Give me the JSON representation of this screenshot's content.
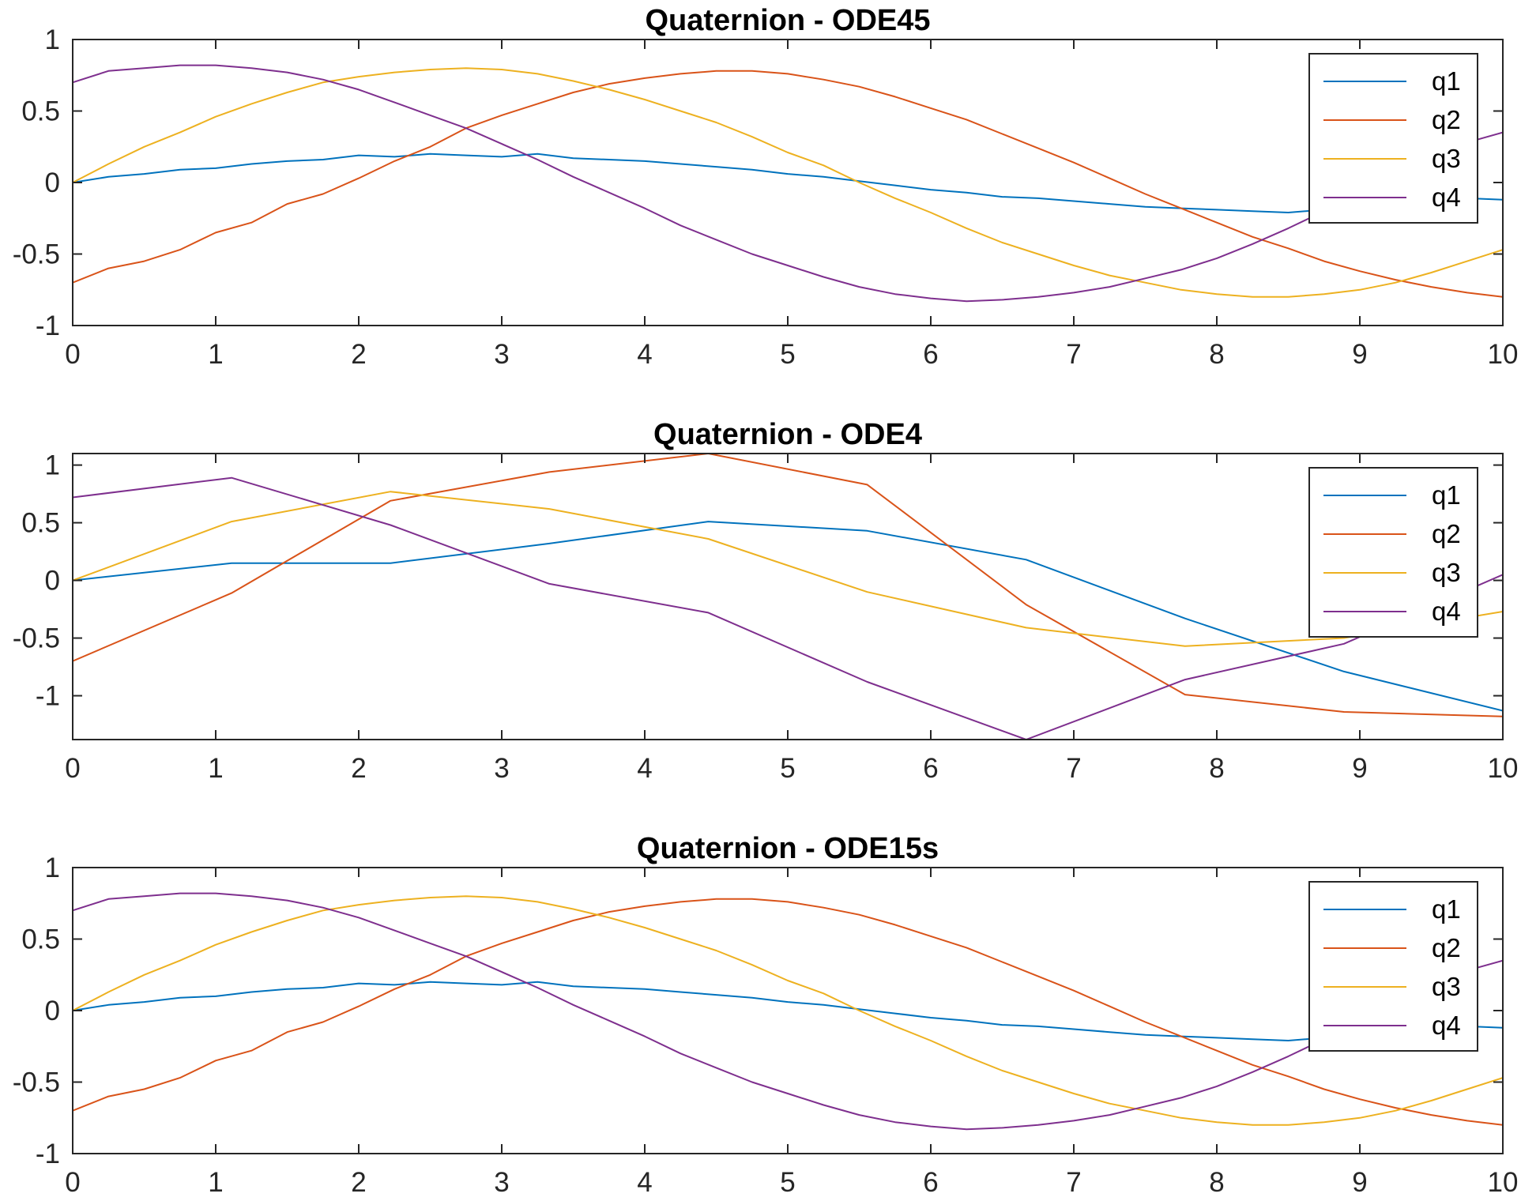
{
  "chart_data": [
    {
      "type": "line",
      "title": "Quaternion - ODE45",
      "xlabel": "",
      "ylabel": "",
      "xlim": [
        0,
        10
      ],
      "ylim": [
        -1,
        1
      ],
      "xticks": [
        "0",
        "1",
        "2",
        "3",
        "4",
        "5",
        "6",
        "7",
        "8",
        "9",
        "10"
      ],
      "yticks": [
        "-1",
        "-0.5",
        "0",
        "0.5",
        "1"
      ],
      "grid": false,
      "legend": "top-right",
      "x": [
        0,
        0.25,
        0.5,
        0.75,
        1,
        1.25,
        1.5,
        1.75,
        2,
        2.25,
        2.5,
        2.75,
        3,
        3.25,
        3.5,
        3.75,
        4,
        4.25,
        4.5,
        4.75,
        5,
        5.25,
        5.5,
        5.75,
        6,
        6.25,
        6.5,
        6.75,
        7,
        7.25,
        7.5,
        7.75,
        8,
        8.25,
        8.5,
        8.75,
        9,
        9.25,
        9.5,
        9.75,
        10
      ],
      "series": [
        {
          "name": "q1",
          "color": "#0072BD",
          "values": [
            0.0,
            0.04,
            0.06,
            0.09,
            0.1,
            0.13,
            0.15,
            0.16,
            0.19,
            0.18,
            0.2,
            0.19,
            0.18,
            0.2,
            0.17,
            0.16,
            0.15,
            0.13,
            0.11,
            0.09,
            0.06,
            0.04,
            0.01,
            -0.02,
            -0.05,
            -0.07,
            -0.1,
            -0.11,
            -0.13,
            -0.15,
            -0.17,
            -0.18,
            -0.19,
            -0.2,
            -0.21,
            -0.19,
            -0.16,
            -0.13,
            -0.1,
            -0.11,
            -0.12
          ]
        },
        {
          "name": "q2",
          "color": "#D95319",
          "values": [
            -0.7,
            -0.6,
            -0.55,
            -0.47,
            -0.35,
            -0.28,
            -0.15,
            -0.08,
            0.03,
            0.15,
            0.25,
            0.38,
            0.47,
            0.55,
            0.63,
            0.69,
            0.73,
            0.76,
            0.78,
            0.78,
            0.76,
            0.72,
            0.67,
            0.6,
            0.52,
            0.44,
            0.34,
            0.24,
            0.14,
            0.03,
            -0.08,
            -0.18,
            -0.28,
            -0.38,
            -0.46,
            -0.55,
            -0.62,
            -0.68,
            -0.73,
            -0.77,
            -0.8
          ]
        },
        {
          "name": "q3",
          "color": "#EDB120",
          "values": [
            0.0,
            0.13,
            0.25,
            0.35,
            0.46,
            0.55,
            0.63,
            0.7,
            0.74,
            0.77,
            0.79,
            0.8,
            0.79,
            0.76,
            0.71,
            0.65,
            0.58,
            0.5,
            0.42,
            0.32,
            0.21,
            0.12,
            0.0,
            -0.11,
            -0.21,
            -0.32,
            -0.42,
            -0.5,
            -0.58,
            -0.65,
            -0.7,
            -0.75,
            -0.78,
            -0.8,
            -0.8,
            -0.78,
            -0.75,
            -0.7,
            -0.63,
            -0.55,
            -0.47
          ]
        },
        {
          "name": "q4",
          "color": "#7E2F8E",
          "values": [
            0.7,
            0.78,
            0.8,
            0.82,
            0.82,
            0.8,
            0.77,
            0.72,
            0.65,
            0.56,
            0.47,
            0.38,
            0.27,
            0.16,
            0.04,
            -0.07,
            -0.18,
            -0.3,
            -0.4,
            -0.5,
            -0.58,
            -0.66,
            -0.73,
            -0.78,
            -0.81,
            -0.83,
            -0.82,
            -0.8,
            -0.77,
            -0.73,
            -0.67,
            -0.61,
            -0.53,
            -0.43,
            -0.32,
            -0.2,
            -0.08,
            0.05,
            0.17,
            0.28,
            0.35
          ]
        }
      ]
    },
    {
      "type": "line",
      "title": "Quaternion - ODE4",
      "xlabel": "",
      "ylabel": "",
      "xlim": [
        0,
        10
      ],
      "ylim": [
        -1.38,
        1.1
      ],
      "xticks": [
        "0",
        "1",
        "2",
        "3",
        "4",
        "5",
        "6",
        "7",
        "8",
        "9",
        "10"
      ],
      "yticks": [
        "-1",
        "-0.5",
        "0",
        "0.5",
        "1"
      ],
      "grid": false,
      "legend": "top-right",
      "x": [
        0,
        1.111,
        2.222,
        3.333,
        4.444,
        5.556,
        6.667,
        7.778,
        8.889,
        10
      ],
      "series": [
        {
          "name": "q1",
          "color": "#0072BD",
          "values": [
            0.0,
            0.15,
            0.15,
            0.32,
            0.51,
            0.43,
            0.18,
            -0.33,
            -0.79,
            -1.13
          ]
        },
        {
          "name": "q2",
          "color": "#D95319",
          "values": [
            -0.7,
            -0.11,
            0.69,
            0.94,
            1.1,
            0.83,
            -0.21,
            -0.99,
            -1.14,
            -1.18
          ]
        },
        {
          "name": "q3",
          "color": "#EDB120",
          "values": [
            0.0,
            0.51,
            0.77,
            0.62,
            0.36,
            -0.1,
            -0.41,
            -0.57,
            -0.5,
            -0.27
          ]
        },
        {
          "name": "q4",
          "color": "#7E2F8E",
          "values": [
            0.72,
            0.89,
            0.48,
            -0.03,
            -0.28,
            -0.88,
            -1.38,
            -0.86,
            -0.55,
            0.05
          ]
        }
      ]
    },
    {
      "type": "line",
      "title": "Quaternion - ODE15s",
      "xlabel": "",
      "ylabel": "",
      "xlim": [
        0,
        10
      ],
      "ylim": [
        -1,
        1
      ],
      "xticks": [
        "0",
        "1",
        "2",
        "3",
        "4",
        "5",
        "6",
        "7",
        "8",
        "9",
        "10"
      ],
      "yticks": [
        "-1",
        "-0.5",
        "0",
        "0.5",
        "1"
      ],
      "grid": false,
      "legend": "top-right",
      "x": [
        0,
        0.25,
        0.5,
        0.75,
        1,
        1.25,
        1.5,
        1.75,
        2,
        2.25,
        2.5,
        2.75,
        3,
        3.25,
        3.5,
        3.75,
        4,
        4.25,
        4.5,
        4.75,
        5,
        5.25,
        5.5,
        5.75,
        6,
        6.25,
        6.5,
        6.75,
        7,
        7.25,
        7.5,
        7.75,
        8,
        8.25,
        8.5,
        8.75,
        9,
        9.25,
        9.5,
        9.75,
        10
      ],
      "series": [
        {
          "name": "q1",
          "color": "#0072BD",
          "values": [
            0.0,
            0.04,
            0.06,
            0.09,
            0.1,
            0.13,
            0.15,
            0.16,
            0.19,
            0.18,
            0.2,
            0.19,
            0.18,
            0.2,
            0.17,
            0.16,
            0.15,
            0.13,
            0.11,
            0.09,
            0.06,
            0.04,
            0.01,
            -0.02,
            -0.05,
            -0.07,
            -0.1,
            -0.11,
            -0.13,
            -0.15,
            -0.17,
            -0.18,
            -0.19,
            -0.2,
            -0.21,
            -0.19,
            -0.16,
            -0.13,
            -0.1,
            -0.11,
            -0.12
          ]
        },
        {
          "name": "q2",
          "color": "#D95319",
          "values": [
            -0.7,
            -0.6,
            -0.55,
            -0.47,
            -0.35,
            -0.28,
            -0.15,
            -0.08,
            0.03,
            0.15,
            0.25,
            0.38,
            0.47,
            0.55,
            0.63,
            0.69,
            0.73,
            0.76,
            0.78,
            0.78,
            0.76,
            0.72,
            0.67,
            0.6,
            0.52,
            0.44,
            0.34,
            0.24,
            0.14,
            0.03,
            -0.08,
            -0.18,
            -0.28,
            -0.38,
            -0.46,
            -0.55,
            -0.62,
            -0.68,
            -0.73,
            -0.77,
            -0.8
          ]
        },
        {
          "name": "q3",
          "color": "#EDB120",
          "values": [
            0.0,
            0.13,
            0.25,
            0.35,
            0.46,
            0.55,
            0.63,
            0.7,
            0.74,
            0.77,
            0.79,
            0.8,
            0.79,
            0.76,
            0.71,
            0.65,
            0.58,
            0.5,
            0.42,
            0.32,
            0.21,
            0.12,
            0.0,
            -0.11,
            -0.21,
            -0.32,
            -0.42,
            -0.5,
            -0.58,
            -0.65,
            -0.7,
            -0.75,
            -0.78,
            -0.8,
            -0.8,
            -0.78,
            -0.75,
            -0.7,
            -0.63,
            -0.55,
            -0.47
          ]
        },
        {
          "name": "q4",
          "color": "#7E2F8E",
          "values": [
            0.7,
            0.78,
            0.8,
            0.82,
            0.82,
            0.8,
            0.77,
            0.72,
            0.65,
            0.56,
            0.47,
            0.38,
            0.27,
            0.16,
            0.04,
            -0.07,
            -0.18,
            -0.3,
            -0.4,
            -0.5,
            -0.58,
            -0.66,
            -0.73,
            -0.78,
            -0.81,
            -0.83,
            -0.82,
            -0.8,
            -0.77,
            -0.73,
            -0.67,
            -0.61,
            -0.53,
            -0.43,
            -0.32,
            -0.2,
            -0.08,
            0.05,
            0.17,
            0.28,
            0.35
          ]
        }
      ]
    }
  ]
}
